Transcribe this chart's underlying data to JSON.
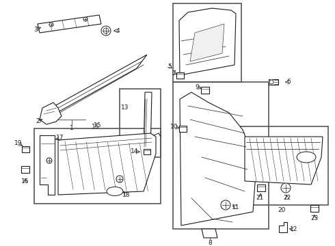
{
  "bg_color": "#ffffff",
  "line_color": "#1a1a1a",
  "box_color": "#444444",
  "fig_width": 4.9,
  "fig_height": 3.6,
  "dpi": 100
}
